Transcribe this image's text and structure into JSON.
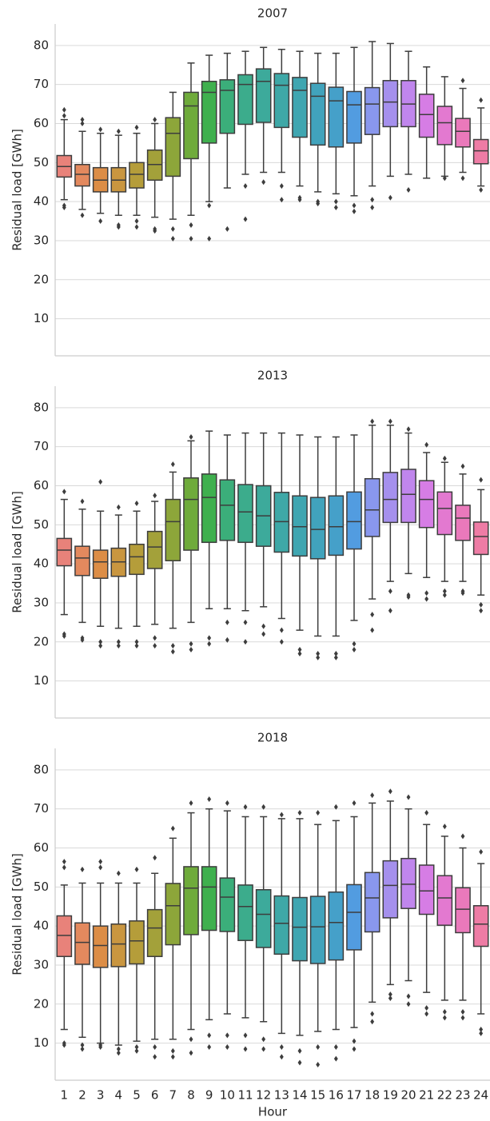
{
  "chart_data": [
    {
      "type": "box",
      "title": "2007",
      "ylabel": "Residual load [GWh]",
      "ylim": [
        0.5,
        85.5
      ],
      "yticks": [
        10,
        20,
        30,
        40,
        50,
        60,
        70,
        80
      ],
      "grid": true,
      "colors": [
        "#e8827a",
        "#e3895e",
        "#dc8d46",
        "#c99640",
        "#b59d3a",
        "#a3a13a",
        "#8da63a",
        "#6fab3b",
        "#3fb04e",
        "#3bae7a",
        "#3cac8c",
        "#3daa9b",
        "#3ea8a7",
        "#3fa6b1",
        "#41a3bc",
        "#45a0c9",
        "#529ce0",
        "#8997ed",
        "#a590ed",
        "#c086ed",
        "#d67de5",
        "#e379d0",
        "#ea79bb",
        "#ee7ca5"
      ],
      "boxes": [
        {
          "whislo": 40.5,
          "q1": 46.3,
          "med": 49,
          "q3": 51.8,
          "whishi": 61,
          "outliers": [
            39,
            38.5,
            62,
            63.5
          ]
        },
        {
          "whislo": 38,
          "q1": 44,
          "med": 47,
          "q3": 49.5,
          "whishi": 58,
          "outliers": [
            36.5,
            60,
            61
          ]
        },
        {
          "whislo": 37,
          "q1": 42.5,
          "med": 45.5,
          "q3": 48.7,
          "whishi": 57.5,
          "outliers": [
            35,
            58.5
          ]
        },
        {
          "whislo": 36.5,
          "q1": 42.5,
          "med": 45.5,
          "q3": 48.7,
          "whishi": 57,
          "outliers": [
            34,
            33.5,
            58
          ]
        },
        {
          "whislo": 36.5,
          "q1": 43.5,
          "med": 47,
          "q3": 50,
          "whishi": 57.5,
          "outliers": [
            35,
            33.5,
            59
          ]
        },
        {
          "whislo": 36,
          "q1": 45.5,
          "med": 49.5,
          "q3": 53.2,
          "whishi": 60,
          "outliers": [
            33,
            32.5,
            61
          ]
        },
        {
          "whislo": 35.5,
          "q1": 46.5,
          "med": 57.5,
          "q3": 61.5,
          "whishi": 68,
          "outliers": [
            33,
            30.5
          ]
        },
        {
          "whislo": 36.5,
          "q1": 51,
          "med": 64.5,
          "q3": 68,
          "whishi": 75.5,
          "outliers": [
            34,
            30.5
          ]
        },
        {
          "whislo": 40,
          "q1": 55,
          "med": 68,
          "q3": 70.8,
          "whishi": 77.5,
          "outliers": [
            39,
            30.5
          ]
        },
        {
          "whislo": 43.5,
          "q1": 57.5,
          "med": 68.5,
          "q3": 71.2,
          "whishi": 78,
          "outliers": [
            33
          ]
        },
        {
          "whislo": 47,
          "q1": 59.8,
          "med": 70,
          "q3": 72.5,
          "whishi": 78.5,
          "outliers": [
            44,
            35.5
          ]
        },
        {
          "whislo": 47.5,
          "q1": 60.3,
          "med": 70.8,
          "q3": 74,
          "whishi": 79.5,
          "outliers": [
            45
          ]
        },
        {
          "whislo": 47.5,
          "q1": 59,
          "med": 69.8,
          "q3": 72.8,
          "whishi": 79,
          "outliers": [
            44,
            40.5
          ]
        },
        {
          "whislo": 44,
          "q1": 56.5,
          "med": 68.5,
          "q3": 71.8,
          "whishi": 78.5,
          "outliers": [
            41,
            40.5
          ]
        },
        {
          "whislo": 42.5,
          "q1": 54.5,
          "med": 67,
          "q3": 70.3,
          "whishi": 78,
          "outliers": [
            40,
            39.5
          ]
        },
        {
          "whislo": 42,
          "q1": 54,
          "med": 65.8,
          "q3": 69.3,
          "whishi": 78,
          "outliers": [
            40,
            38.5
          ]
        },
        {
          "whislo": 41.5,
          "q1": 55,
          "med": 64.8,
          "q3": 68.2,
          "whishi": 79.5,
          "outliers": [
            39,
            37.5
          ]
        },
        {
          "whislo": 44,
          "q1": 57.2,
          "med": 65,
          "q3": 69.2,
          "whishi": 81,
          "outliers": [
            40.5,
            38.5
          ]
        },
        {
          "whislo": 46.5,
          "q1": 59.2,
          "med": 65.5,
          "q3": 71,
          "whishi": 80.5,
          "outliers": [
            41
          ]
        },
        {
          "whislo": 47,
          "q1": 59.2,
          "med": 65,
          "q3": 71,
          "whishi": 78.5,
          "outliers": [
            43
          ]
        },
        {
          "whislo": 46,
          "q1": 56.5,
          "med": 62.3,
          "q3": 67.5,
          "whishi": 74.5,
          "outliers": []
        },
        {
          "whislo": 46.5,
          "q1": 54.6,
          "med": 60.2,
          "q3": 64.4,
          "whishi": 72,
          "outliers": [
            46
          ]
        },
        {
          "whislo": 47.5,
          "q1": 54,
          "med": 58,
          "q3": 61.3,
          "whishi": 69,
          "outliers": [
            46,
            71
          ]
        },
        {
          "whislo": 44,
          "q1": 49.7,
          "med": 53,
          "q3": 55.9,
          "whishi": 64,
          "outliers": [
            43,
            66
          ]
        }
      ]
    },
    {
      "type": "box",
      "title": "2013",
      "ylabel": "Residual load [GWh]",
      "ylim": [
        0.5,
        85.5
      ],
      "yticks": [
        10,
        20,
        30,
        40,
        50,
        60,
        70,
        80
      ],
      "grid": true,
      "colors": [
        "#e8827a",
        "#e3895e",
        "#dc8d46",
        "#c99640",
        "#b59d3a",
        "#a3a13a",
        "#8da63a",
        "#6fab3b",
        "#3fb04e",
        "#3bae7a",
        "#3cac8c",
        "#3daa9b",
        "#3ea8a7",
        "#3fa6b1",
        "#41a3bc",
        "#45a0c9",
        "#529ce0",
        "#8997ed",
        "#a590ed",
        "#c086ed",
        "#d67de5",
        "#e379d0",
        "#ea79bb",
        "#ee7ca5"
      ],
      "boxes": [
        {
          "whislo": 27,
          "q1": 39.5,
          "med": 43.5,
          "q3": 46.5,
          "whishi": 56.5,
          "outliers": [
            22,
            21.5,
            58.5
          ]
        },
        {
          "whislo": 25,
          "q1": 37,
          "med": 41.5,
          "q3": 44.5,
          "whishi": 54,
          "outliers": [
            21,
            20.5,
            56
          ]
        },
        {
          "whislo": 24,
          "q1": 36.3,
          "med": 40.5,
          "q3": 43.5,
          "whishi": 53.5,
          "outliers": [
            20,
            19,
            61
          ]
        },
        {
          "whislo": 23.5,
          "q1": 36.8,
          "med": 40.5,
          "q3": 44,
          "whishi": 52.5,
          "outliers": [
            20,
            19,
            54.5
          ]
        },
        {
          "whislo": 24,
          "q1": 37.3,
          "med": 41.8,
          "q3": 45,
          "whishi": 53.5,
          "outliers": [
            20,
            19,
            55.5
          ]
        },
        {
          "whislo": 24.5,
          "q1": 38.8,
          "med": 44.3,
          "q3": 48.3,
          "whishi": 56,
          "outliers": [
            21,
            19,
            57.5
          ]
        },
        {
          "whislo": 23.5,
          "q1": 40.8,
          "med": 50.8,
          "q3": 56.5,
          "whishi": 63.5,
          "outliers": [
            19,
            17.5,
            65.5
          ]
        },
        {
          "whislo": 25,
          "q1": 43.5,
          "med": 56.5,
          "q3": 62,
          "whishi": 71.5,
          "outliers": [
            19.5,
            18,
            72.5
          ]
        },
        {
          "whislo": 28.5,
          "q1": 45.5,
          "med": 57,
          "q3": 63,
          "whishi": 74,
          "outliers": [
            21,
            19.5
          ]
        },
        {
          "whislo": 28.5,
          "q1": 46,
          "med": 55,
          "q3": 61.5,
          "whishi": 73,
          "outliers": [
            25,
            20.5
          ]
        },
        {
          "whislo": 28,
          "q1": 45.5,
          "med": 53.3,
          "q3": 60.3,
          "whishi": 73.5,
          "outliers": [
            25,
            20
          ]
        },
        {
          "whislo": 29,
          "q1": 44.5,
          "med": 52.3,
          "q3": 60,
          "whishi": 73.5,
          "outliers": [
            24,
            22
          ]
        },
        {
          "whislo": 26,
          "q1": 43,
          "med": 50.8,
          "q3": 58.3,
          "whishi": 73.5,
          "outliers": [
            23,
            20
          ]
        },
        {
          "whislo": 23,
          "q1": 42,
          "med": 49.5,
          "q3": 57.4,
          "whishi": 73,
          "outliers": [
            18,
            17
          ]
        },
        {
          "whislo": 21.5,
          "q1": 41.3,
          "med": 48.8,
          "q3": 57,
          "whishi": 72.5,
          "outliers": [
            17,
            16
          ]
        },
        {
          "whislo": 21.5,
          "q1": 42.2,
          "med": 49.5,
          "q3": 57.4,
          "whishi": 72.5,
          "outliers": [
            17,
            16
          ]
        },
        {
          "whislo": 25.5,
          "q1": 43.8,
          "med": 50.8,
          "q3": 58.4,
          "whishi": 73,
          "outliers": [
            19.5,
            18
          ]
        },
        {
          "whislo": 31,
          "q1": 47,
          "med": 53.8,
          "q3": 61.8,
          "whishi": 75.5,
          "outliers": [
            27,
            23,
            76.5
          ]
        },
        {
          "whislo": 35.5,
          "q1": 50.6,
          "med": 56.5,
          "q3": 63.4,
          "whishi": 75.5,
          "outliers": [
            33,
            28,
            76.5
          ]
        },
        {
          "whislo": 37.5,
          "q1": 50.6,
          "med": 57.8,
          "q3": 64.2,
          "whishi": 73.5,
          "outliers": [
            32,
            31.5,
            74.5
          ]
        },
        {
          "whislo": 36.5,
          "q1": 49.3,
          "med": 56.5,
          "q3": 61.3,
          "whishi": 68.5,
          "outliers": [
            32.5,
            31,
            70.5
          ]
        },
        {
          "whislo": 35.5,
          "q1": 47.5,
          "med": 54.2,
          "q3": 58.4,
          "whishi": 66,
          "outliers": [
            33,
            32,
            67
          ]
        },
        {
          "whislo": 35.5,
          "q1": 46,
          "med": 51.7,
          "q3": 55,
          "whishi": 63,
          "outliers": [
            33,
            32.5,
            65
          ]
        },
        {
          "whislo": 32,
          "q1": 42.4,
          "med": 47,
          "q3": 50.7,
          "whishi": 59,
          "outliers": [
            29.5,
            28,
            61.5
          ]
        }
      ]
    },
    {
      "type": "box",
      "title": "2018",
      "ylabel": "Residual load [GWh]",
      "xlabel": "Hour",
      "ylim": [
        0.5,
        85.5
      ],
      "yticks": [
        10,
        20,
        30,
        40,
        50,
        60,
        70,
        80
      ],
      "grid": true,
      "categories": [
        "1",
        "2",
        "3",
        "4",
        "5",
        "6",
        "7",
        "8",
        "9",
        "10",
        "11",
        "12",
        "13",
        "14",
        "15",
        "16",
        "17",
        "18",
        "19",
        "20",
        "21",
        "22",
        "23",
        "24"
      ],
      "colors": [
        "#e8827a",
        "#e3895e",
        "#dc8d46",
        "#c99640",
        "#b59d3a",
        "#a3a13a",
        "#8da63a",
        "#6fab3b",
        "#3fb04e",
        "#3bae7a",
        "#3cac8c",
        "#3daa9b",
        "#3ea8a7",
        "#3fa6b1",
        "#41a3bc",
        "#45a0c9",
        "#529ce0",
        "#8997ed",
        "#a590ed",
        "#c086ed",
        "#d67de5",
        "#e379d0",
        "#ea79bb",
        "#ee7ca5"
      ],
      "boxes": [
        {
          "whislo": 13.5,
          "q1": 32.2,
          "med": 37.6,
          "q3": 42.6,
          "whishi": 50.5,
          "outliers": [
            10,
            9.5,
            55,
            56.5
          ]
        },
        {
          "whislo": 11.5,
          "q1": 30.2,
          "med": 35.8,
          "q3": 40.8,
          "whishi": 51,
          "outliers": [
            9.5,
            8.5,
            54.5
          ]
        },
        {
          "whislo": 10,
          "q1": 29.4,
          "med": 35,
          "q3": 40,
          "whishi": 51,
          "outliers": [
            9.5,
            9,
            55,
            56.5
          ]
        },
        {
          "whislo": 9.5,
          "q1": 29.6,
          "med": 35.4,
          "q3": 40.5,
          "whishi": 51,
          "outliers": [
            8.5,
            7.5,
            53.5
          ]
        },
        {
          "whislo": 10.5,
          "q1": 30.3,
          "med": 36.2,
          "q3": 41.3,
          "whishi": 51,
          "outliers": [
            9,
            8,
            54.5
          ]
        },
        {
          "whislo": 11,
          "q1": 32.2,
          "med": 39.5,
          "q3": 44.2,
          "whishi": 53.5,
          "outliers": [
            9,
            6.5,
            57.5
          ]
        },
        {
          "whislo": 11,
          "q1": 35.2,
          "med": 45.2,
          "q3": 50.9,
          "whishi": 62.5,
          "outliers": [
            8,
            6.5,
            65
          ]
        },
        {
          "whislo": 13.5,
          "q1": 37.8,
          "med": 49.7,
          "q3": 55.2,
          "whishi": 69,
          "outliers": [
            11,
            7.5,
            71.5
          ]
        },
        {
          "whislo": 16,
          "q1": 38.9,
          "med": 50,
          "q3": 55.2,
          "whishi": 70,
          "outliers": [
            12,
            9,
            72.5
          ]
        },
        {
          "whislo": 17.5,
          "q1": 38.6,
          "med": 47.4,
          "q3": 52.3,
          "whishi": 69.5,
          "outliers": [
            12,
            9,
            71.5
          ]
        },
        {
          "whislo": 16.5,
          "q1": 36.3,
          "med": 45,
          "q3": 50.5,
          "whishi": 68,
          "outliers": [
            12,
            8.5,
            70.5
          ]
        },
        {
          "whislo": 15.5,
          "q1": 34.5,
          "med": 43,
          "q3": 49.3,
          "whishi": 68,
          "outliers": [
            11,
            8.5,
            70.5
          ]
        },
        {
          "whislo": 12.5,
          "q1": 32.8,
          "med": 40.7,
          "q3": 47.7,
          "whishi": 67.5,
          "outliers": [
            9,
            6.5,
            68.5
          ]
        },
        {
          "whislo": 12,
          "q1": 31.1,
          "med": 39.7,
          "q3": 47.3,
          "whishi": 67.5,
          "outliers": [
            8,
            5,
            69
          ]
        },
        {
          "whislo": 13,
          "q1": 30.4,
          "med": 39.8,
          "q3": 47.6,
          "whishi": 66,
          "outliers": [
            9,
            4.5,
            69
          ]
        },
        {
          "whislo": 13.5,
          "q1": 31.3,
          "med": 40.9,
          "q3": 48.7,
          "whishi": 67,
          "outliers": [
            9,
            6,
            70.5
          ]
        },
        {
          "whislo": 14,
          "q1": 33.9,
          "med": 43.5,
          "q3": 50.6,
          "whishi": 68,
          "outliers": [
            10.5,
            8.5,
            71.5
          ]
        },
        {
          "whislo": 20.5,
          "q1": 38.5,
          "med": 47.2,
          "q3": 53.7,
          "whishi": 71.5,
          "outliers": [
            17.5,
            15.5,
            73.5
          ]
        },
        {
          "whislo": 25,
          "q1": 42.1,
          "med": 50.4,
          "q3": 56.7,
          "whishi": 72,
          "outliers": [
            22.5,
            21.5,
            74.5
          ]
        },
        {
          "whislo": 26,
          "q1": 44.5,
          "med": 50.7,
          "q3": 57.3,
          "whishi": 70,
          "outliers": [
            22,
            20,
            73
          ]
        },
        {
          "whislo": 23,
          "q1": 43,
          "med": 49,
          "q3": 55.6,
          "whishi": 66,
          "outliers": [
            19,
            17.5,
            69
          ]
        },
        {
          "whislo": 21,
          "q1": 40.2,
          "med": 47.2,
          "q3": 52.9,
          "whishi": 63,
          "outliers": [
            18,
            16.5,
            65.5
          ]
        },
        {
          "whislo": 21,
          "q1": 38.3,
          "med": 44.3,
          "q3": 49.8,
          "whishi": 60,
          "outliers": [
            18,
            16.5,
            63
          ]
        },
        {
          "whislo": 17.5,
          "q1": 34.8,
          "med": 40.5,
          "q3": 45.2,
          "whishi": 56,
          "outliers": [
            13.5,
            12.5,
            59
          ]
        }
      ]
    }
  ]
}
